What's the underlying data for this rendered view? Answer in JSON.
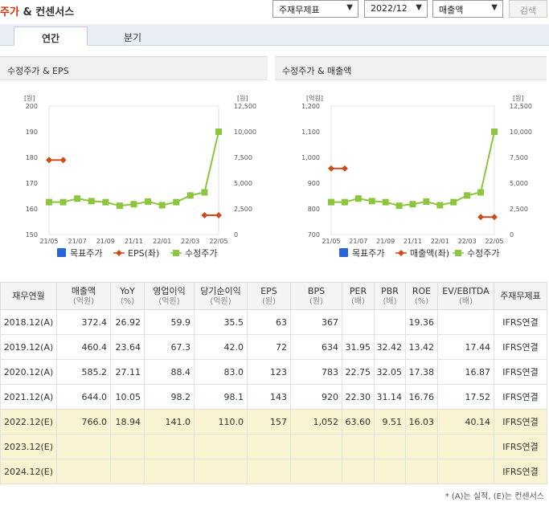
{
  "header": {
    "title_accent": "주가",
    "title_rest": " & 컨센서스",
    "select_basis": "주재무제표",
    "select_period": "2022/12",
    "select_metric": "매출액",
    "search_label": "검색"
  },
  "tabs": [
    {
      "label": "연간",
      "active": true
    },
    {
      "label": "분기",
      "active": false
    }
  ],
  "chart_data": [
    {
      "type": "line",
      "title": "수정주가 & EPS",
      "x": [
        "21/05",
        "21/06",
        "21/07",
        "21/08",
        "21/09",
        "21/10",
        "21/11",
        "21/12",
        "22/01",
        "22/02",
        "22/03",
        "22/04",
        "22/05"
      ],
      "x_tick_labels": [
        "21/05",
        "21/07",
        "21/09",
        "21/11",
        "22/01",
        "22/03",
        "22/05"
      ],
      "left_axis": {
        "unit": "[원]",
        "range": [
          150,
          200
        ],
        "ticks": [
          "150",
          "160",
          "170",
          "180",
          "190",
          "200"
        ]
      },
      "right_axis": {
        "unit": "[원]",
        "range": [
          0,
          12500
        ],
        "ticks": [
          "0",
          "2,500",
          "5,000",
          "7,500",
          "10,000",
          "12,500"
        ]
      },
      "legend": [
        "목표주가",
        "EPS(좌)",
        "수정주가"
      ],
      "series": [
        {
          "name": "EPS(좌)",
          "axis": "left",
          "color": "#d14a1a",
          "values": [
            179,
            179,
            null,
            null,
            null,
            null,
            null,
            null,
            null,
            null,
            null,
            157.5,
            157.5
          ]
        },
        {
          "name": "수정주가",
          "axis": "right",
          "color": "#8cc63f",
          "values": [
            3150,
            3150,
            3500,
            3250,
            3150,
            2800,
            2950,
            3200,
            2850,
            3150,
            3800,
            4100,
            10000
          ]
        }
      ]
    },
    {
      "type": "line",
      "title": "수정주가 & 매출액",
      "x": [
        "21/05",
        "21/06",
        "21/07",
        "21/08",
        "21/09",
        "21/10",
        "21/11",
        "21/12",
        "22/01",
        "22/02",
        "22/03",
        "22/04",
        "22/05"
      ],
      "x_tick_labels": [
        "21/05",
        "21/07",
        "21/09",
        "21/11",
        "22/01",
        "22/03",
        "22/05"
      ],
      "left_axis": {
        "unit": "[억원]",
        "range": [
          700,
          1200
        ],
        "ticks": [
          "700",
          "800",
          "900",
          "1,000",
          "1,100",
          "1,200"
        ]
      },
      "right_axis": {
        "unit": "[원]",
        "range": [
          0,
          12500
        ],
        "ticks": [
          "0",
          "2,500",
          "5,000",
          "7,500",
          "10,000",
          "12,500"
        ]
      },
      "legend": [
        "목표주가",
        "매출액(좌)",
        "수정주가"
      ],
      "series": [
        {
          "name": "매출액(좌)",
          "axis": "left",
          "color": "#d14a1a",
          "values": [
            957,
            957,
            null,
            null,
            null,
            null,
            null,
            null,
            null,
            null,
            null,
            768,
            768
          ]
        },
        {
          "name": "수정주가",
          "axis": "right",
          "color": "#8cc63f",
          "values": [
            3150,
            3150,
            3500,
            3250,
            3150,
            2800,
            2950,
            3200,
            2850,
            3150,
            3800,
            4100,
            10000
          ]
        }
      ]
    }
  ],
  "table": {
    "headers": [
      {
        "label": "재무연월",
        "unit": ""
      },
      {
        "label": "매출액",
        "unit": "(억원)"
      },
      {
        "label": "YoY",
        "unit": "(%)"
      },
      {
        "label": "영업이익",
        "unit": "(억원)"
      },
      {
        "label": "당기순이익",
        "unit": "(억원)"
      },
      {
        "label": "EPS",
        "unit": "(원)"
      },
      {
        "label": "BPS",
        "unit": "(원)"
      },
      {
        "label": "PER",
        "unit": "(배)"
      },
      {
        "label": "PBR",
        "unit": "(배)"
      },
      {
        "label": "ROE",
        "unit": "(%)"
      },
      {
        "label": "EV/EBITDA",
        "unit": "(배)"
      },
      {
        "label": "주재무제표",
        "unit": ""
      }
    ],
    "rows": [
      {
        "period": "2018.12(A)",
        "cells": [
          "372.4",
          "26.92",
          "59.9",
          "35.5",
          "63",
          "367",
          "",
          "",
          "19.36",
          ""
        ],
        "basis": "IFRS연결",
        "estimate": false
      },
      {
        "period": "2019.12(A)",
        "cells": [
          "460.4",
          "23.64",
          "67.3",
          "42.0",
          "72",
          "634",
          "31.95",
          "32.42",
          "13.42",
          "17.44"
        ],
        "basis": "IFRS연결",
        "estimate": false
      },
      {
        "period": "2020.12(A)",
        "cells": [
          "585.2",
          "27.11",
          "88.4",
          "83.0",
          "123",
          "783",
          "22.75",
          "32.05",
          "17.38",
          "16.87"
        ],
        "basis": "IFRS연결",
        "estimate": false
      },
      {
        "period": "2021.12(A)",
        "cells": [
          "644.0",
          "10.05",
          "98.2",
          "98.1",
          "143",
          "920",
          "22.30",
          "31.14",
          "16.76",
          "17.52"
        ],
        "basis": "IFRS연결",
        "estimate": false
      },
      {
        "period": "2022.12(E)",
        "cells": [
          "766.0",
          "18.94",
          "141.0",
          "110.0",
          "157",
          "1,052",
          "63.60",
          "9.51",
          "16.03",
          "40.14"
        ],
        "basis": "IFRS연결",
        "estimate": true
      },
      {
        "period": "2023.12(E)",
        "cells": [
          "",
          "",
          "",
          "",
          "",
          "",
          "",
          "",
          "",
          ""
        ],
        "basis": "IFRS연결",
        "estimate": true
      },
      {
        "period": "2024.12(E)",
        "cells": [
          "",
          "",
          "",
          "",
          "",
          "",
          "",
          "",
          "",
          ""
        ],
        "basis": "IFRS연결",
        "estimate": true
      }
    ]
  },
  "footnote": "* (A)는 실적, (E)는 컨센서스"
}
